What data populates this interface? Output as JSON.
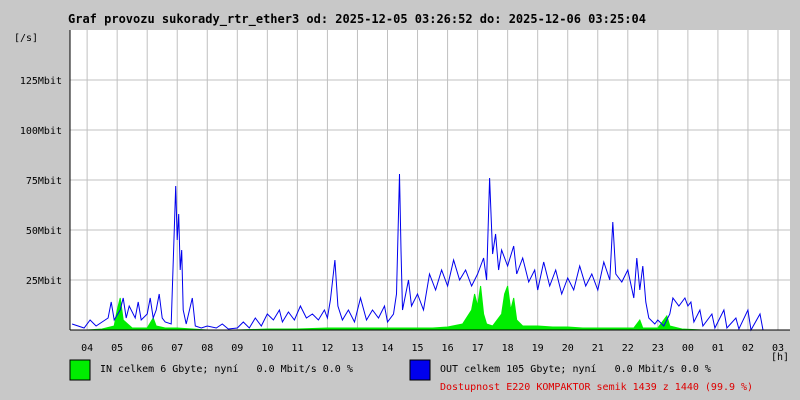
{
  "chart_data": {
    "type": "line",
    "title": "Graf provozu sukorady_rtr_ether3 od: 2025-12-05 03:26:52 do: 2025-12-06 03:25:04",
    "ylabel": "[/s]",
    "xlabel": "[h]",
    "ylim": [
      0,
      150
    ],
    "y_unit": "Mbit",
    "yticks": [
      {
        "value": 25,
        "label": "25Mbit"
      },
      {
        "value": 50,
        "label": "50Mbit"
      },
      {
        "value": 75,
        "label": "75Mbit"
      },
      {
        "value": 100,
        "label": "100Mbit"
      },
      {
        "value": 125,
        "label": "125Mbit"
      }
    ],
    "x_hours": [
      "04",
      "05",
      "06",
      "07",
      "08",
      "09",
      "10",
      "11",
      "12",
      "13",
      "14",
      "15",
      "16",
      "17",
      "18",
      "19",
      "20",
      "21",
      "22",
      "23",
      "00",
      "01",
      "02",
      "03"
    ],
    "grid": true,
    "series": [
      {
        "name": "IN",
        "color": "#00ee00",
        "style": "area",
        "points": [
          [
            4.0,
            0
          ],
          [
            4.5,
            0.5
          ],
          [
            4.9,
            2
          ],
          [
            5.0,
            10
          ],
          [
            5.1,
            16
          ],
          [
            5.2,
            5
          ],
          [
            5.5,
            1
          ],
          [
            6.0,
            1
          ],
          [
            6.2,
            6
          ],
          [
            6.3,
            2
          ],
          [
            6.6,
            1
          ],
          [
            7.0,
            1
          ],
          [
            7.5,
            0.5
          ],
          [
            8.0,
            0
          ],
          [
            9.0,
            0
          ],
          [
            10.0,
            0.5
          ],
          [
            11.0,
            0.5
          ],
          [
            12.0,
            1
          ],
          [
            13.0,
            1
          ],
          [
            14.0,
            1
          ],
          [
            14.5,
            1
          ],
          [
            15.0,
            1
          ],
          [
            15.5,
            1
          ],
          [
            16.0,
            1.5
          ],
          [
            16.5,
            3
          ],
          [
            16.8,
            10
          ],
          [
            16.9,
            18
          ],
          [
            17.0,
            12
          ],
          [
            17.1,
            22
          ],
          [
            17.2,
            8
          ],
          [
            17.3,
            3
          ],
          [
            17.5,
            2
          ],
          [
            17.8,
            8
          ],
          [
            17.9,
            18
          ],
          [
            18.0,
            22
          ],
          [
            18.1,
            10
          ],
          [
            18.2,
            16
          ],
          [
            18.3,
            5
          ],
          [
            18.5,
            2
          ],
          [
            19.0,
            2
          ],
          [
            19.5,
            1.5
          ],
          [
            20.0,
            1.5
          ],
          [
            20.5,
            1
          ],
          [
            21.0,
            1
          ],
          [
            21.5,
            1
          ],
          [
            22.0,
            1
          ],
          [
            22.2,
            1
          ],
          [
            22.4,
            5
          ],
          [
            22.5,
            1
          ],
          [
            23.0,
            1
          ],
          [
            23.3,
            7
          ],
          [
            23.4,
            2
          ],
          [
            23.8,
            0.5
          ],
          [
            24.5,
            0
          ],
          [
            27.0,
            0
          ]
        ]
      },
      {
        "name": "OUT",
        "color": "#0000ee",
        "style": "line",
        "points": [
          [
            3.5,
            3
          ],
          [
            3.9,
            1
          ],
          [
            4.1,
            5
          ],
          [
            4.3,
            2
          ],
          [
            4.5,
            4
          ],
          [
            4.7,
            6
          ],
          [
            4.8,
            14
          ],
          [
            4.9,
            5
          ],
          [
            5.1,
            10
          ],
          [
            5.2,
            16
          ],
          [
            5.3,
            6
          ],
          [
            5.4,
            12
          ],
          [
            5.6,
            6
          ],
          [
            5.7,
            14
          ],
          [
            5.8,
            5
          ],
          [
            6.0,
            8
          ],
          [
            6.1,
            16
          ],
          [
            6.2,
            6
          ],
          [
            6.3,
            10
          ],
          [
            6.4,
            18
          ],
          [
            6.5,
            6
          ],
          [
            6.6,
            4
          ],
          [
            6.8,
            3
          ],
          [
            6.95,
            72
          ],
          [
            7.0,
            45
          ],
          [
            7.05,
            58
          ],
          [
            7.1,
            30
          ],
          [
            7.15,
            40
          ],
          [
            7.2,
            10
          ],
          [
            7.3,
            3
          ],
          [
            7.5,
            16
          ],
          [
            7.6,
            2
          ],
          [
            7.8,
            1
          ],
          [
            8.0,
            2
          ],
          [
            8.3,
            1
          ],
          [
            8.5,
            3
          ],
          [
            8.7,
            0.5
          ],
          [
            9.0,
            1
          ],
          [
            9.2,
            4
          ],
          [
            9.4,
            1
          ],
          [
            9.6,
            6
          ],
          [
            9.8,
            2
          ],
          [
            10.0,
            8
          ],
          [
            10.2,
            5
          ],
          [
            10.4,
            10
          ],
          [
            10.5,
            4
          ],
          [
            10.7,
            9
          ],
          [
            10.9,
            5
          ],
          [
            11.1,
            12
          ],
          [
            11.3,
            6
          ],
          [
            11.5,
            8
          ],
          [
            11.7,
            5
          ],
          [
            11.9,
            10
          ],
          [
            12.0,
            6
          ],
          [
            12.1,
            15
          ],
          [
            12.25,
            35
          ],
          [
            12.35,
            12
          ],
          [
            12.5,
            5
          ],
          [
            12.7,
            10
          ],
          [
            12.9,
            4
          ],
          [
            13.1,
            16
          ],
          [
            13.3,
            5
          ],
          [
            13.5,
            10
          ],
          [
            13.7,
            6
          ],
          [
            13.9,
            12
          ],
          [
            14.0,
            4
          ],
          [
            14.2,
            8
          ],
          [
            14.3,
            18
          ],
          [
            14.4,
            78
          ],
          [
            14.45,
            40
          ],
          [
            14.5,
            10
          ],
          [
            14.7,
            25
          ],
          [
            14.8,
            12
          ],
          [
            15.0,
            18
          ],
          [
            15.2,
            10
          ],
          [
            15.4,
            28
          ],
          [
            15.6,
            20
          ],
          [
            15.8,
            30
          ],
          [
            16.0,
            22
          ],
          [
            16.2,
            35
          ],
          [
            16.4,
            25
          ],
          [
            16.6,
            30
          ],
          [
            16.8,
            22
          ],
          [
            17.0,
            28
          ],
          [
            17.2,
            36
          ],
          [
            17.3,
            25
          ],
          [
            17.4,
            76
          ],
          [
            17.5,
            38
          ],
          [
            17.6,
            48
          ],
          [
            17.7,
            30
          ],
          [
            17.8,
            40
          ],
          [
            18.0,
            32
          ],
          [
            18.2,
            42
          ],
          [
            18.3,
            28
          ],
          [
            18.5,
            36
          ],
          [
            18.7,
            24
          ],
          [
            18.9,
            30
          ],
          [
            19.0,
            20
          ],
          [
            19.2,
            34
          ],
          [
            19.4,
            22
          ],
          [
            19.6,
            30
          ],
          [
            19.8,
            18
          ],
          [
            20.0,
            26
          ],
          [
            20.2,
            20
          ],
          [
            20.4,
            32
          ],
          [
            20.6,
            22
          ],
          [
            20.8,
            28
          ],
          [
            21.0,
            20
          ],
          [
            21.2,
            34
          ],
          [
            21.4,
            25
          ],
          [
            21.5,
            54
          ],
          [
            21.6,
            28
          ],
          [
            21.8,
            24
          ],
          [
            22.0,
            30
          ],
          [
            22.2,
            16
          ],
          [
            22.3,
            36
          ],
          [
            22.4,
            20
          ],
          [
            22.5,
            32
          ],
          [
            22.6,
            14
          ],
          [
            22.7,
            6
          ],
          [
            22.9,
            3
          ],
          [
            23.0,
            5
          ],
          [
            23.2,
            2
          ],
          [
            23.4,
            8
          ],
          [
            23.5,
            16
          ],
          [
            23.7,
            12
          ],
          [
            23.9,
            16
          ],
          [
            24.0,
            12
          ],
          [
            24.1,
            14
          ],
          [
            24.2,
            4
          ],
          [
            24.4,
            10
          ],
          [
            24.5,
            2
          ],
          [
            24.8,
            8
          ],
          [
            24.9,
            1
          ],
          [
            25.2,
            10
          ],
          [
            25.3,
            1
          ],
          [
            25.6,
            6
          ],
          [
            25.7,
            0.5
          ],
          [
            26.0,
            10
          ],
          [
            26.1,
            0
          ],
          [
            26.4,
            8
          ],
          [
            26.5,
            0
          ],
          [
            27.0,
            0
          ]
        ]
      }
    ],
    "legend": [
      {
        "series": "IN",
        "label": "IN celkem 6 Gbyte; nyní   0.0 Mbit/s 0.0 %"
      },
      {
        "series": "OUT",
        "label": "OUT celkem 105 Gbyte; nyní   0.0 Mbit/s 0.0 %"
      }
    ],
    "availability": {
      "text": "Dostupnost E220 KOMPAKTOR semik 1439 z 1440 (99.9 %)",
      "color": "#dd0000"
    }
  }
}
